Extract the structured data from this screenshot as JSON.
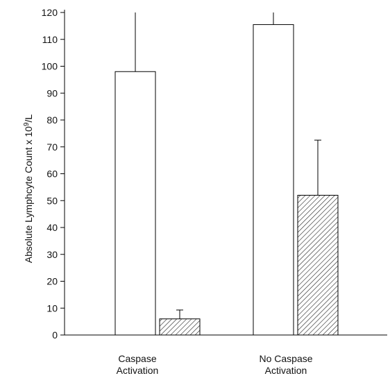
{
  "chart_data": {
    "type": "bar",
    "categories": [
      "Caspase Activation",
      "No Caspase Activation"
    ],
    "category_label_lines": [
      [
        "Caspase",
        "Activation"
      ],
      [
        "No Caspase",
        "Activation"
      ]
    ],
    "series": [
      {
        "pattern": "open",
        "values": [
          98,
          115.5
        ],
        "error_upper": [
          120,
          120
        ]
      },
      {
        "pattern": "hatched",
        "values": [
          6,
          52
        ],
        "error_upper": [
          9.3,
          72.5
        ]
      }
    ],
    "ylabel_main": "Absolute Lymphcyte Count x 10",
    "ylabel_sup": "9",
    "ylabel_tail": "/L",
    "ylim": [
      0,
      120
    ],
    "yticks": [
      0,
      10,
      20,
      30,
      40,
      50,
      60,
      70,
      80,
      90,
      100,
      110,
      120
    ],
    "grid": false,
    "legend": "none"
  }
}
